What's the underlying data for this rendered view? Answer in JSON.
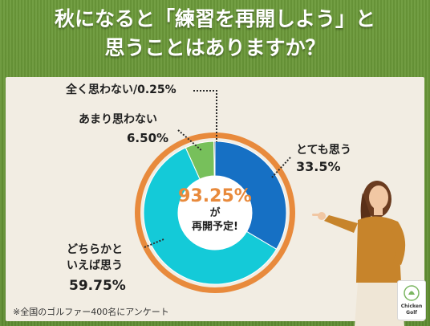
{
  "title": {
    "line1": "秋になると「練習を再開しよう」と",
    "line2": "思うことはありますか？"
  },
  "labels": {
    "not_at_all": "全く思わない/0.25%",
    "rarely_text": "あまり思わない",
    "rarely_value": "6.50%",
    "very_text": "とても思う",
    "very_value": "33.5%",
    "somewhat_line1": "どちらかと",
    "somewhat_line2": "いえば思う",
    "somewhat_value": "59.75%"
  },
  "center": {
    "value": "93.25%",
    "line2": "が",
    "line3": "再開予定!"
  },
  "note": "※全国のゴルファー400名にアンケート",
  "logo": {
    "text": "Chicken Golf"
  },
  "colors": {
    "very": "#1670c4",
    "somewhat": "#14cad8",
    "rarely": "#77c05b",
    "not_at_all": "#3f3f3f",
    "ring": "#e88a3c",
    "highlight": "#e88a3c"
  },
  "chart_data": {
    "type": "pie",
    "donut": true,
    "categories": [
      "とても思う",
      "どちらかといえば思う",
      "あまり思わない",
      "全く思わない"
    ],
    "values": [
      33.5,
      59.75,
      6.5,
      0.25
    ],
    "center_value": "93.25%",
    "legend": "none"
  }
}
